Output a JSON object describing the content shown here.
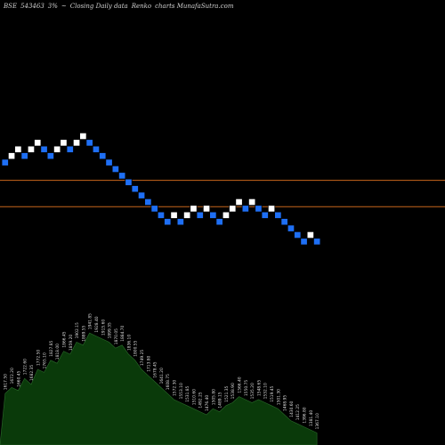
{
  "header": {
    "exchange": "BSE",
    "symbol": "543463",
    "brick": "3%",
    "arrow": "~",
    "subtitle": "Closing Daily data",
    "chart_kind": "Renko",
    "site": "charts MunafaSutra.com"
  },
  "colors": {
    "background": "#000000",
    "up_brick": "#ffffff",
    "down_brick": "#1e6ff5",
    "brick_border": "#000000",
    "level_line": "#c8661c",
    "volume_fill": "#0a3a0a",
    "volume_edge": "#2a6a2a",
    "label_text": "#d8d8d8"
  },
  "chart_data": {
    "type": "renko",
    "bricks": [
      {
        "dir": "down",
        "level": 4
      },
      {
        "dir": "up",
        "level": 5
      },
      {
        "dir": "up",
        "level": 6
      },
      {
        "dir": "down",
        "level": 5
      },
      {
        "dir": "up",
        "level": 6
      },
      {
        "dir": "up",
        "level": 7
      },
      {
        "dir": "down",
        "level": 6
      },
      {
        "dir": "down",
        "level": 5
      },
      {
        "dir": "up",
        "level": 6
      },
      {
        "dir": "up",
        "level": 7
      },
      {
        "dir": "down",
        "level": 6
      },
      {
        "dir": "up",
        "level": 7
      },
      {
        "dir": "up",
        "level": 8
      },
      {
        "dir": "down",
        "level": 7
      },
      {
        "dir": "down",
        "level": 6
      },
      {
        "dir": "down",
        "level": 5
      },
      {
        "dir": "down",
        "level": 4
      },
      {
        "dir": "down",
        "level": 3
      },
      {
        "dir": "down",
        "level": 2
      },
      {
        "dir": "down",
        "level": 1
      },
      {
        "dir": "down",
        "level": 0
      },
      {
        "dir": "down",
        "level": -1
      },
      {
        "dir": "down",
        "level": -2
      },
      {
        "dir": "down",
        "level": -3
      },
      {
        "dir": "down",
        "level": -4
      },
      {
        "dir": "down",
        "level": -5
      },
      {
        "dir": "up",
        "level": -4
      },
      {
        "dir": "down",
        "level": -5
      },
      {
        "dir": "up",
        "level": -4
      },
      {
        "dir": "up",
        "level": -3
      },
      {
        "dir": "down",
        "level": -4
      },
      {
        "dir": "up",
        "level": -3
      },
      {
        "dir": "down",
        "level": -4
      },
      {
        "dir": "down",
        "level": -5
      },
      {
        "dir": "up",
        "level": -4
      },
      {
        "dir": "up",
        "level": -3
      },
      {
        "dir": "up",
        "level": -2
      },
      {
        "dir": "down",
        "level": -3
      },
      {
        "dir": "up",
        "level": -2
      },
      {
        "dir": "down",
        "level": -3
      },
      {
        "dir": "down",
        "level": -4
      },
      {
        "dir": "up",
        "level": -3
      },
      {
        "dir": "down",
        "level": -4
      },
      {
        "dir": "down",
        "level": -5
      },
      {
        "dir": "down",
        "level": -6
      },
      {
        "dir": "down",
        "level": -7
      },
      {
        "dir": "down",
        "level": -8
      },
      {
        "dir": "up",
        "level": -7
      },
      {
        "dir": "down",
        "level": -8
      }
    ],
    "level_lines": [
      1,
      -3
    ],
    "volume_series": [
      34,
      38,
      36,
      44,
      40,
      50,
      48,
      56,
      54,
      62,
      60,
      68,
      66,
      74,
      72,
      70,
      68,
      64,
      66,
      60,
      56,
      50,
      46,
      42,
      38,
      34,
      30,
      28,
      26,
      24,
      22,
      20,
      24,
      22,
      26,
      28,
      32,
      30,
      28,
      30,
      28,
      26,
      24,
      20,
      16,
      14,
      12,
      10,
      8
    ],
    "volume_labels": [
      "1617.50",
      "1672.20",
      "1660.45",
      "1722.60",
      "1682.35",
      "1772.50",
      "1765.10",
      "1827.85",
      "1818.00",
      "1866.45",
      "1859.20",
      "1902.15",
      "1889.55",
      "1941.85",
      "1928.40",
      "1915.60",
      "1899.35",
      "1870.05",
      "1884.70",
      "1836.10",
      "1800.55",
      "1749.25",
      "1713.80",
      "1678.45",
      "1641.20",
      "1608.75",
      "1572.30",
      "1553.10",
      "1531.85",
      "1510.60",
      "1492.25",
      "1476.40",
      "1505.80",
      "1489.15",
      "1521.35",
      "1538.90",
      "1566.40",
      "1550.75",
      "1535.20",
      "1548.65",
      "1532.10",
      "1519.45",
      "1501.30",
      "1468.95",
      "1430.60",
      "1412.25",
      "1396.80",
      "1381.40",
      "1367.10"
    ]
  }
}
